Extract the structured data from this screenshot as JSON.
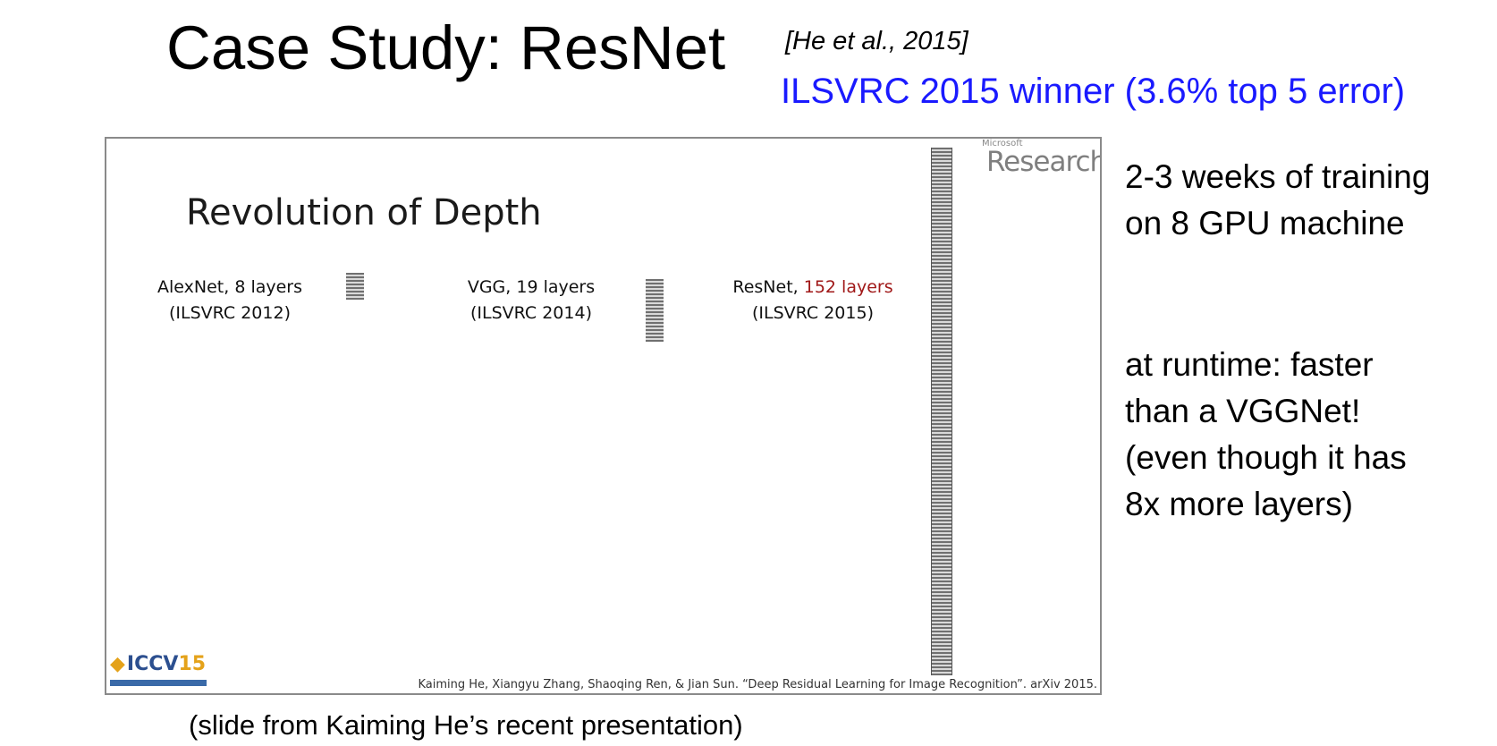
{
  "header": {
    "title": "Case Study: ResNet",
    "citation": "[He et al., 2015]",
    "subtitle": "ILSVRC 2015 winner (3.6% top 5 error)"
  },
  "slide": {
    "heading": "Revolution of Depth",
    "brand_small": "Microsoft",
    "brand_large": "Research",
    "networks": [
      {
        "name": "AlexNet,",
        "layers": "8 layers",
        "event": "(ILSVRC 2012)"
      },
      {
        "name": "VGG,",
        "layers": "19 layers",
        "event": "(ILSVRC 2014)"
      },
      {
        "name": "ResNet,",
        "layers": "152 layers",
        "event": "(ILSVRC 2015)"
      }
    ],
    "logo_text": "ICCV",
    "logo_year": "15",
    "reference": "Kaiming He, Xiangyu Zhang, Shaoqing Ren, & Jian Sun. “Deep Residual Learning for Image Recognition”. arXiv 2015.",
    "highlight_color": "#a01818"
  },
  "notes": {
    "note1": [
      "2-3 weeks of training",
      "on 8 GPU machine"
    ],
    "note2": [
      "at runtime: faster",
      "than a VGGNet!",
      "(even though it has",
      "8x more layers)"
    ]
  },
  "caption": "(slide from Kaiming He’s recent presentation)",
  "colors": {
    "subtitle": "#1a1aff"
  }
}
